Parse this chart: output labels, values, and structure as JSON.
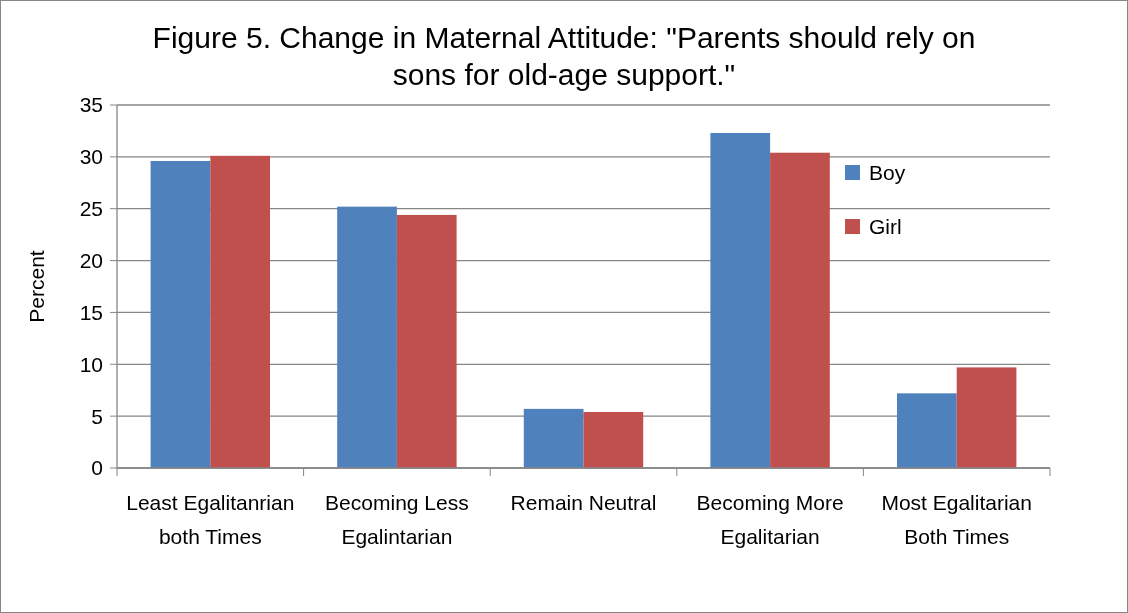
{
  "chart_data": {
    "type": "bar",
    "title": "Figure 5. Change in Maternal Attitude: \"Parents should rely on sons for old-age support.\"",
    "ylabel": "Percent",
    "categories": [
      "Least Egalitanrian both Times",
      "Becoming Less Egalintarian",
      "Remain Neutral",
      "Becoming More Egalitarian",
      "Most Egalitarian Both Times"
    ],
    "series": [
      {
        "name": "Boy",
        "color": "#4f81bd",
        "values": [
          29.6,
          25.2,
          5.7,
          32.3,
          7.2
        ]
      },
      {
        "name": "Girl",
        "color": "#c0504d",
        "values": [
          30.1,
          24.4,
          5.4,
          30.4,
          9.7
        ]
      }
    ],
    "ylim": [
      0,
      35
    ],
    "yticks": [
      0,
      5,
      10,
      15,
      20,
      25,
      30,
      35
    ],
    "grid": "y",
    "legend": "right"
  }
}
